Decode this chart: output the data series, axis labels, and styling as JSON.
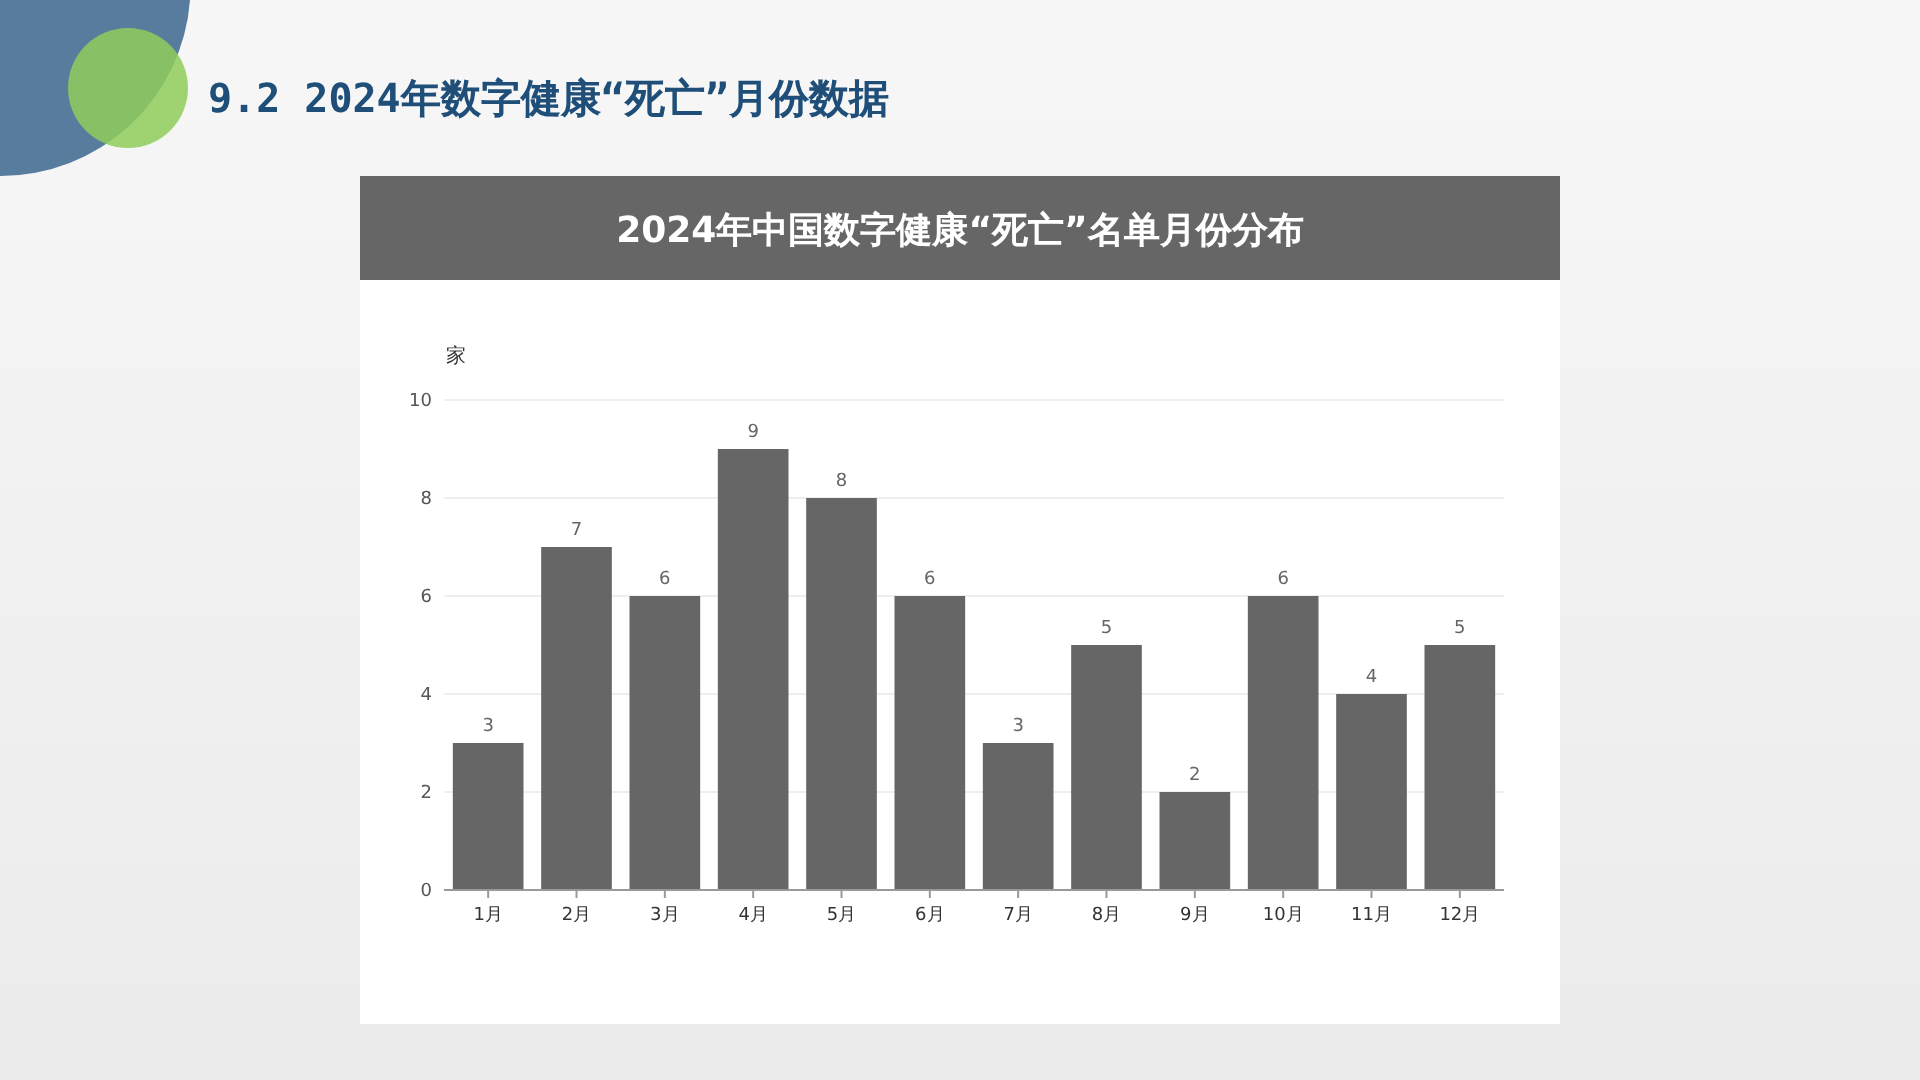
{
  "chart_data": {
    "type": "bar",
    "title": "9.2 2024年数字健康“死亡”月份数据",
    "subtitle": "2024年中国数字健康“死亡”名单月份分布",
    "ylabel": "家",
    "categories": [
      "1月",
      "2月",
      "3月",
      "4月",
      "5月",
      "6月",
      "7月",
      "8月",
      "9月",
      "10月",
      "11月",
      "12月"
    ],
    "values": [
      3,
      7,
      6,
      9,
      8,
      6,
      3,
      5,
      2,
      6,
      4,
      5
    ],
    "color": "#666666",
    "ylim": [
      0,
      10
    ],
    "yticks": [
      0,
      2,
      4,
      6,
      8,
      10
    ],
    "grid": "y",
    "data_labels": true
  }
}
